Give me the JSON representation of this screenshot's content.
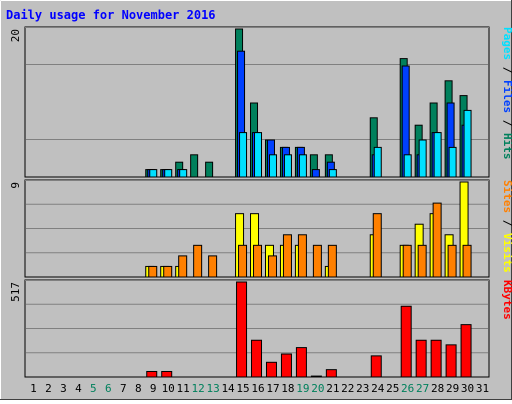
{
  "chart_data": [
    {
      "type": "bar",
      "panel": "pages-files-hits",
      "title": "Daily usage for November 2016",
      "ymax_label": "20",
      "ylim": [
        0,
        20
      ],
      "categories": [
        "1",
        "2",
        "3",
        "4",
        "5",
        "6",
        "7",
        "8",
        "9",
        "10",
        "11",
        "12",
        "13",
        "14",
        "15",
        "16",
        "17",
        "18",
        "19",
        "20",
        "21",
        "22",
        "23",
        "24",
        "25",
        "26",
        "27",
        "28",
        "29",
        "30",
        "31"
      ],
      "weekend_days": [
        "5",
        "6",
        "12",
        "13",
        "19",
        "20",
        "26",
        "27"
      ],
      "legend": [
        "Pages",
        "Files",
        "Hits"
      ],
      "series": [
        {
          "name": "Hits",
          "color": "#00805c",
          "values": [
            0,
            0,
            0,
            0,
            0,
            0,
            0,
            0,
            1,
            1,
            2,
            3,
            2,
            0,
            20,
            10,
            5,
            4,
            4,
            3,
            3,
            0,
            0,
            8,
            0,
            16,
            7,
            10,
            13,
            11,
            0
          ]
        },
        {
          "name": "Files",
          "color": "#0040ff",
          "values": [
            0,
            0,
            0,
            0,
            0,
            0,
            0,
            0,
            1,
            1,
            1,
            0,
            0,
            0,
            17,
            6,
            5,
            4,
            4,
            1,
            2,
            0,
            0,
            3,
            0,
            15,
            3,
            6,
            10,
            7,
            0
          ]
        },
        {
          "name": "Pages",
          "color": "#00e0ff",
          "values": [
            0,
            0,
            0,
            0,
            0,
            0,
            0,
            0,
            1,
            1,
            1,
            0,
            0,
            0,
            6,
            6,
            3,
            3,
            3,
            0,
            1,
            0,
            0,
            4,
            0,
            3,
            5,
            6,
            4,
            9,
            0
          ]
        }
      ]
    },
    {
      "type": "bar",
      "panel": "sites-visits",
      "ymax_label": "9",
      "ylim": [
        0,
        9
      ],
      "categories": [
        "1",
        "2",
        "3",
        "4",
        "5",
        "6",
        "7",
        "8",
        "9",
        "10",
        "11",
        "12",
        "13",
        "14",
        "15",
        "16",
        "17",
        "18",
        "19",
        "20",
        "21",
        "22",
        "23",
        "24",
        "25",
        "26",
        "27",
        "28",
        "29",
        "30",
        "31"
      ],
      "legend": [
        "Sites",
        "Visits"
      ],
      "series": [
        {
          "name": "Visits",
          "color": "#ffff00",
          "values": [
            0,
            0,
            0,
            0,
            0,
            0,
            0,
            0,
            1,
            1,
            1,
            0,
            0,
            0,
            6,
            6,
            3,
            3,
            3,
            0,
            1,
            0,
            0,
            4,
            0,
            3,
            5,
            6,
            4,
            9,
            0
          ]
        },
        {
          "name": "Sites",
          "color": "#ff8000",
          "values": [
            0,
            0,
            0,
            0,
            0,
            0,
            0,
            0,
            1,
            1,
            2,
            3,
            2,
            0,
            3,
            3,
            2,
            4,
            4,
            3,
            3,
            0,
            0,
            6,
            0,
            3,
            3,
            7,
            3,
            3,
            0
          ]
        }
      ]
    },
    {
      "type": "bar",
      "panel": "kbytes",
      "ymax_label": "517",
      "ylim": [
        0,
        517
      ],
      "categories": [
        "1",
        "2",
        "3",
        "4",
        "5",
        "6",
        "7",
        "8",
        "9",
        "10",
        "11",
        "12",
        "13",
        "14",
        "15",
        "16",
        "17",
        "18",
        "19",
        "20",
        "21",
        "22",
        "23",
        "24",
        "25",
        "26",
        "27",
        "28",
        "29",
        "30",
        "31"
      ],
      "legend": [
        "KBytes"
      ],
      "series": [
        {
          "name": "KBytes",
          "color": "#ff0000",
          "values": [
            0,
            0,
            0,
            0,
            0,
            0,
            0,
            0,
            30,
            30,
            0,
            0,
            0,
            0,
            517,
            200,
            80,
            125,
            160,
            5,
            40,
            0,
            0,
            115,
            0,
            385,
            200,
            200,
            175,
            285,
            0
          ]
        }
      ]
    }
  ],
  "colors": {
    "background": "#c0c0c0",
    "plot_background": "#c0c0c0",
    "title": "#0000ff",
    "weekday_label": "#000000",
    "weekend_label": "#00805c",
    "gridline": "#808080",
    "legend_sep": "#000000"
  }
}
